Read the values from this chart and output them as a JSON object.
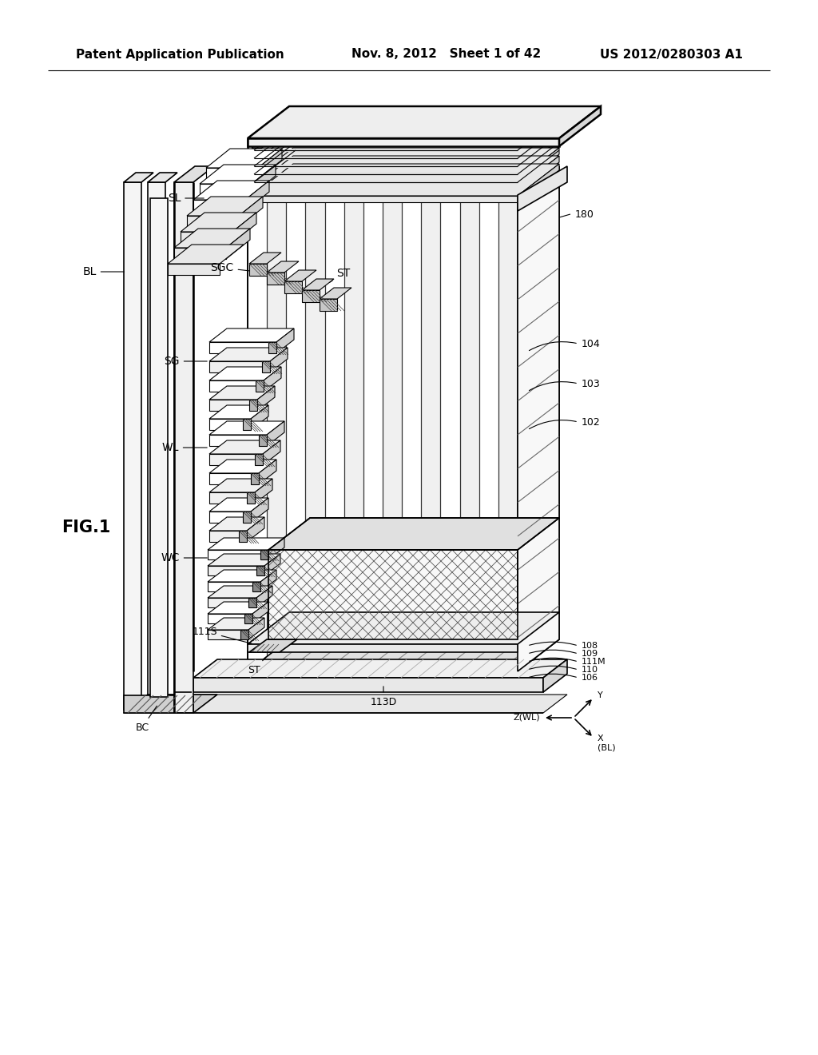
{
  "header_left": "Patent Application Publication",
  "header_mid": "Nov. 8, 2012   Sheet 1 of 42",
  "header_right": "US 2012/0280303 A1",
  "fig_label": "FIG.1",
  "bg_color": "#ffffff",
  "line_color": "#000000",
  "header_fontsize": 11,
  "fig_fontsize": 15,
  "label_fontsize": 10,
  "ann_fontsize": 9
}
